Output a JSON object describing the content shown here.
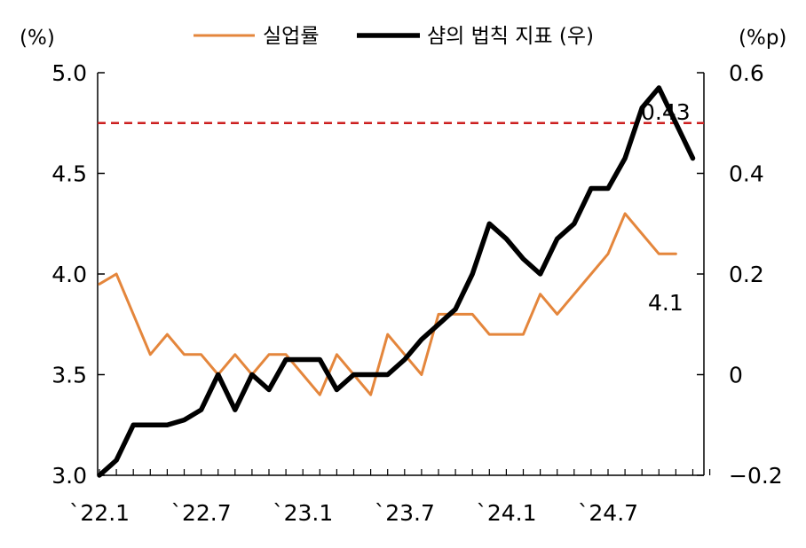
{
  "chart_data": {
    "type": "line",
    "x_tick_labels": [
      "`22.1",
      "`22.7",
      "`23.1",
      "`23.7",
      "`24.1",
      "`24.7"
    ],
    "left_axis": {
      "unit": "(%)",
      "ylim": [
        3.0,
        5.0
      ],
      "ticks": [
        "3.0",
        "3.5",
        "4.0",
        "4.5",
        "5.0"
      ]
    },
    "right_axis": {
      "unit": "(%p)",
      "ylim": [
        -0.2,
        0.6
      ],
      "ticks": [
        "−0.2",
        "0",
        "0.2",
        "0.4",
        "0.6"
      ]
    },
    "series": [
      {
        "name": "실업률",
        "color": "#e4863c",
        "axis": "left",
        "values": [
          3.95,
          4.0,
          3.8,
          3.6,
          3.7,
          3.6,
          3.6,
          3.5,
          3.6,
          3.5,
          3.6,
          3.6,
          3.5,
          3.4,
          3.6,
          3.5,
          3.4,
          3.7,
          3.6,
          3.5,
          3.8,
          3.8,
          3.8,
          3.7,
          3.7,
          3.7,
          3.9,
          3.8,
          3.9,
          4.0,
          4.1,
          4.3,
          4.2,
          4.1,
          4.1
        ]
      },
      {
        "name": "샴의 법칙 지표 (우)",
        "color": "#000000",
        "axis": "right",
        "values": [
          -0.2,
          -0.17,
          -0.1,
          -0.1,
          -0.1,
          -0.09,
          -0.07,
          0.0,
          -0.07,
          0.0,
          -0.03,
          0.03,
          0.03,
          0.03,
          -0.03,
          0.0,
          0.0,
          0.0,
          0.03,
          0.07,
          0.1,
          0.13,
          0.2,
          0.3,
          0.27,
          0.23,
          0.2,
          0.27,
          0.3,
          0.37,
          0.37,
          0.43,
          0.53,
          0.57,
          0.5,
          0.43
        ]
      }
    ],
    "reference_line": {
      "axis": "right",
      "value": 0.5,
      "color": "#cc1f1f",
      "style": "dashed"
    },
    "annotations": [
      {
        "text": "0.43",
        "series": "샴의 법칙 지표 (우)"
      },
      {
        "text": "4.1",
        "series": "실업률"
      }
    ],
    "legend": "top",
    "grid": false
  }
}
